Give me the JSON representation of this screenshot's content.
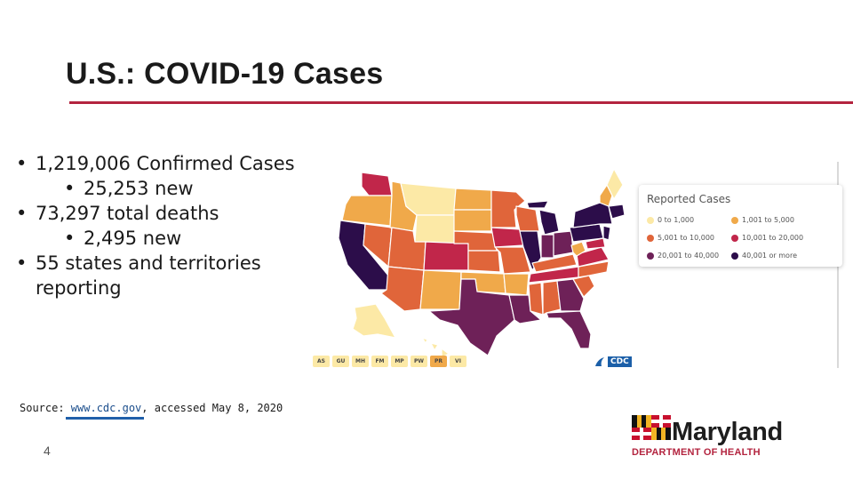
{
  "slide": {
    "title": "U.S.: COVID-19 Cases",
    "page_number": "4"
  },
  "bullets": [
    {
      "level": 1,
      "text": "1,219,006 Confirmed Cases"
    },
    {
      "level": 2,
      "text": "25,253 new"
    },
    {
      "level": 1,
      "text": "73,297 total deaths"
    },
    {
      "level": 2,
      "text": "2,495 new"
    },
    {
      "level": 1,
      "text": "55 states and territories reporting"
    }
  ],
  "source": {
    "prefix": "Source: ",
    "link": "www.cdc.gov",
    "suffix": ", accessed May 8, 2020"
  },
  "map": {
    "legend": {
      "title": "Reported Cases",
      "items": [
        {
          "label": "0 to 1,000",
          "color": "#fce9a6"
        },
        {
          "label": "1,001 to 5,000",
          "color": "#f0a94a"
        },
        {
          "label": "5,001 to 10,000",
          "color": "#e0653a"
        },
        {
          "label": "10,001 to 20,000",
          "color": "#c1264a"
        },
        {
          "label": "20,001 to 40,000",
          "color": "#6e2158"
        },
        {
          "label": "40,001 or more",
          "color": "#2c0d4a"
        }
      ]
    },
    "territories": [
      {
        "label": "AS",
        "color": "#fce9a6"
      },
      {
        "label": "GU",
        "color": "#fce9a6"
      },
      {
        "label": "MH",
        "color": "#fce9a6"
      },
      {
        "label": "FM",
        "color": "#fce9a6"
      },
      {
        "label": "MP",
        "color": "#fce9a6"
      },
      {
        "label": "PW",
        "color": "#fce9a6"
      },
      {
        "label": "PR",
        "color": "#f0a94a"
      },
      {
        "label": "VI",
        "color": "#fce9a6"
      }
    ],
    "credit": "CDC"
  },
  "logo": {
    "name": "Maryland",
    "department": "DEPARTMENT OF HEALTH"
  }
}
